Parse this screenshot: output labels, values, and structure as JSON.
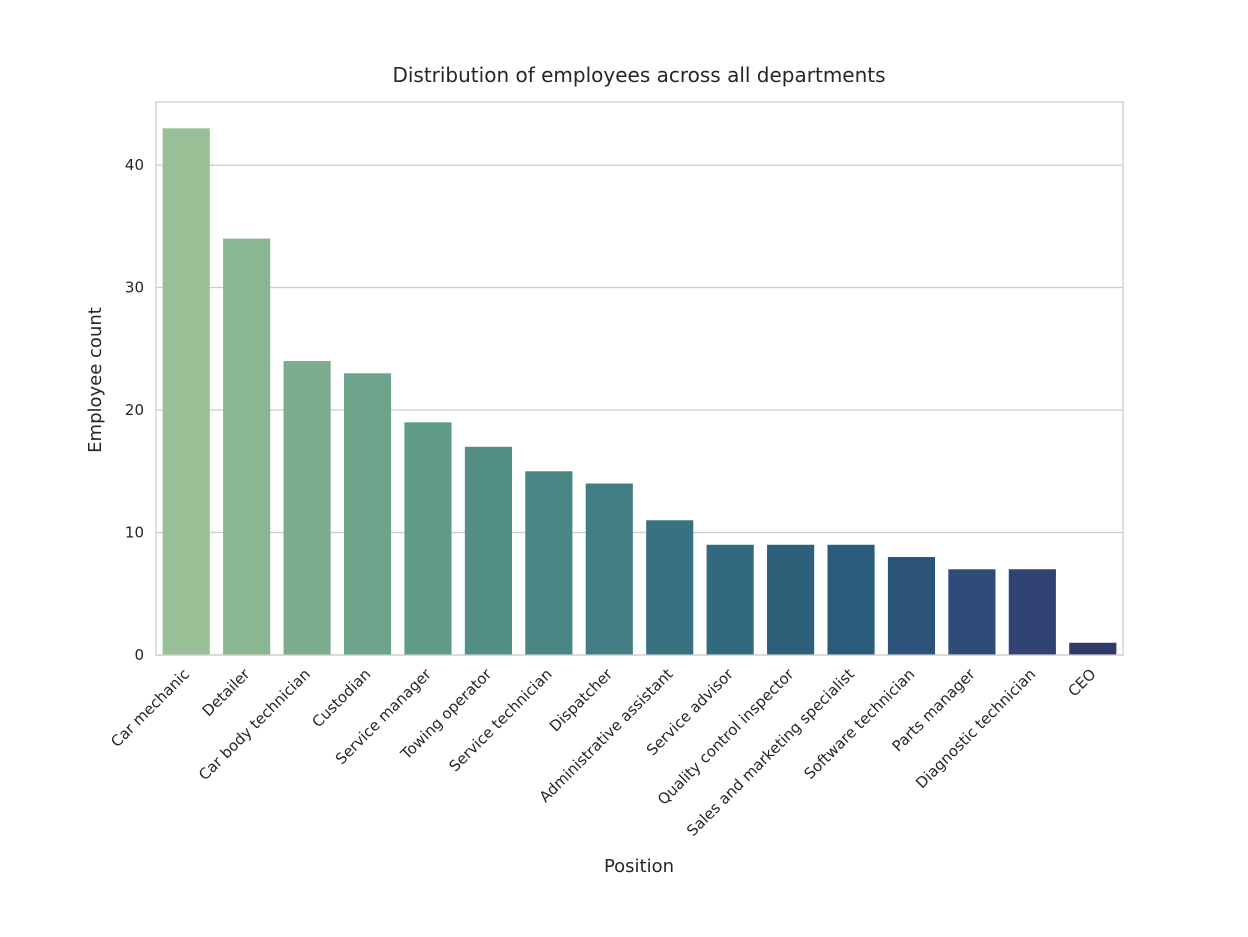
{
  "chart_data": {
    "type": "bar",
    "title": "Distribution of employees across all departments",
    "xlabel": "Position",
    "ylabel": "Employee count",
    "categories": [
      "Car mechanic",
      "Detailer",
      "Car body technician",
      "Custodian",
      "Service manager",
      "Towing operator",
      "Service technician",
      "Dispatcher",
      "Administrative assistant",
      "Service advisor",
      "Quality control inspector",
      "Sales and marketing specialist",
      "Software technician",
      "Parts manager",
      "Diagnostic technician",
      "CEO"
    ],
    "values": [
      43,
      34,
      24,
      23,
      19,
      17,
      15,
      14,
      11,
      9,
      9,
      9,
      8,
      7,
      7,
      1
    ],
    "colors": [
      "#98bf96",
      "#8ab692",
      "#7dad8f",
      "#6ea48c",
      "#609b89",
      "#538f86",
      "#4a8684",
      "#417d82",
      "#387280",
      "#33697d",
      "#2d6179",
      "#2b5b7a",
      "#2c537a",
      "#2f4b78",
      "#314372",
      "#31396a"
    ],
    "yticks": [
      0,
      10,
      20,
      30,
      40
    ],
    "ylim": [
      0,
      45.15
    ],
    "grid": true
  }
}
